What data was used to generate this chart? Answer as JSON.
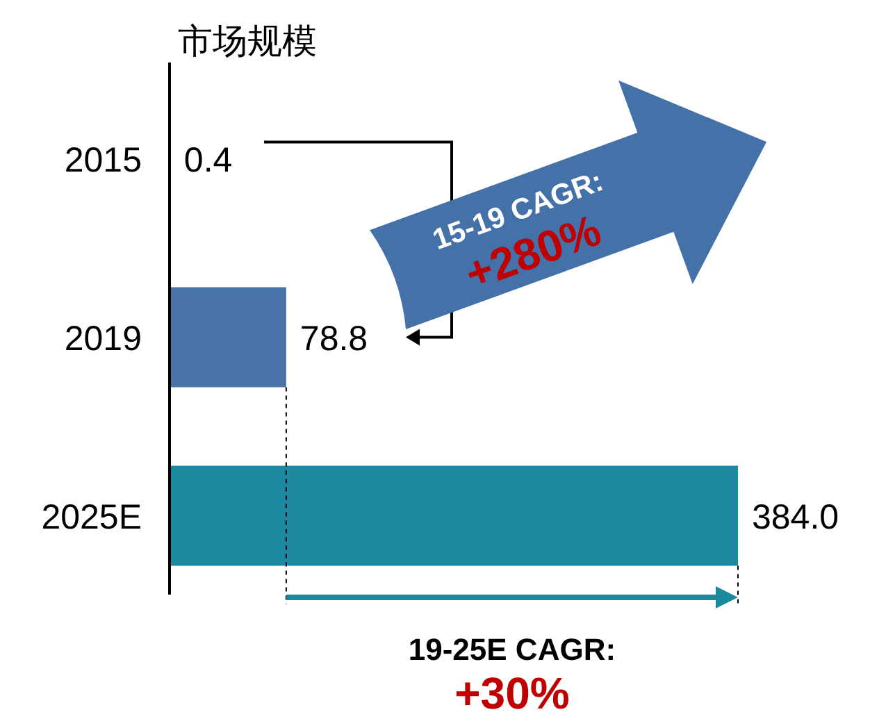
{
  "chart_data": {
    "type": "bar",
    "orientation": "horizontal",
    "title": "市场规模",
    "categories": [
      "2015",
      "2019",
      "2025E"
    ],
    "values": [
      0.4,
      78.8,
      384.0
    ],
    "value_labels": [
      "0.4",
      "78.8",
      "384.0"
    ],
    "colors": [
      "#4a74a8",
      "#4a74a8",
      "#1b8aa0"
    ],
    "annotations": [
      "15-19 CAGR:",
      "+280%",
      "19-25E CAGR:",
      "+30%"
    ]
  }
}
